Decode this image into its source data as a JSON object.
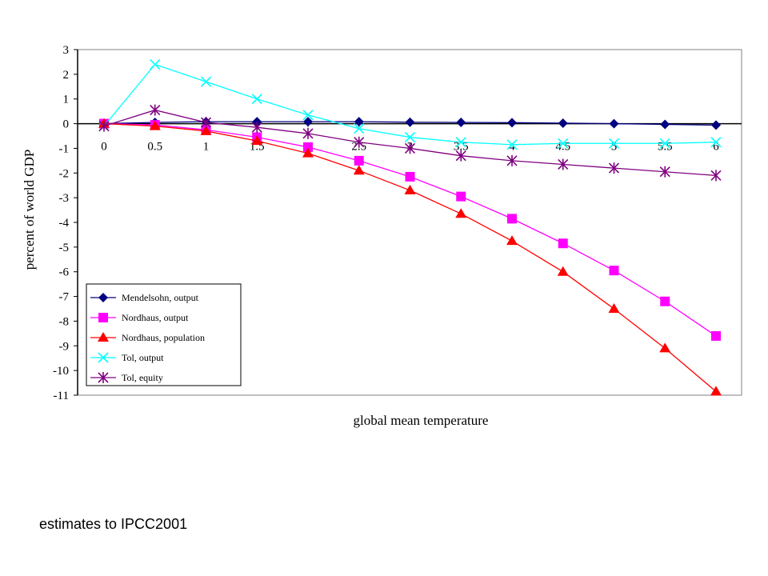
{
  "caption": "estimates to IPCC2001",
  "chart_data": {
    "type": "line",
    "xlabel": "global mean temperature",
    "ylabel": "percent of world GDP",
    "ylim": [
      -11,
      3
    ],
    "xlim": [
      0,
      6
    ],
    "yticks": [
      "3",
      "2",
      "1",
      "0",
      "-1",
      "-2",
      "-3",
      "-4",
      "-5",
      "-6",
      "-7",
      "-8",
      "-9",
      "-10",
      "-11"
    ],
    "xticks": [
      "0",
      "0.5",
      "1",
      "1.5",
      "2",
      "2.5",
      "3",
      "3.5",
      "4",
      "4.5",
      "5",
      "5.5",
      "6"
    ],
    "x": [
      0,
      0.5,
      1,
      1.5,
      2,
      2.5,
      3,
      3.5,
      4,
      4.5,
      5,
      5.5,
      6
    ],
    "grid": false,
    "legend_position": "bottom-left",
    "series": [
      {
        "name": "Mendelsohn, output",
        "color": "#000080",
        "marker": "diamond",
        "values": [
          0,
          0.05,
          0.08,
          0.08,
          0.08,
          0.08,
          0.06,
          0.05,
          0.04,
          0.02,
          0.0,
          -0.03,
          -0.06
        ]
      },
      {
        "name": "Nordhaus, output",
        "color": "#ff00ff",
        "marker": "square",
        "values": [
          0,
          -0.05,
          -0.25,
          -0.55,
          -0.95,
          -1.5,
          -2.15,
          -2.95,
          -3.85,
          -4.85,
          -5.95,
          -7.2,
          -8.6
        ]
      },
      {
        "name": "Nordhaus, population",
        "color": "#ff0000",
        "marker": "triangle",
        "values": [
          0,
          -0.1,
          -0.3,
          -0.7,
          -1.2,
          -1.9,
          -2.7,
          -3.65,
          -4.75,
          -6.0,
          -7.5,
          -9.1,
          -10.85
        ]
      },
      {
        "name": "Tol, output",
        "color": "#00ffff",
        "marker": "x",
        "values": [
          -0.1,
          2.4,
          1.7,
          1.0,
          0.35,
          -0.2,
          -0.55,
          -0.75,
          -0.85,
          -0.8,
          -0.8,
          -0.8,
          -0.75
        ]
      },
      {
        "name": "Tol, equity",
        "color": "#800080",
        "marker": "star",
        "values": [
          -0.1,
          0.55,
          0.05,
          -0.15,
          -0.4,
          -0.75,
          -1.0,
          -1.3,
          -1.5,
          -1.65,
          -1.8,
          -1.95,
          -2.1
        ]
      }
    ]
  }
}
